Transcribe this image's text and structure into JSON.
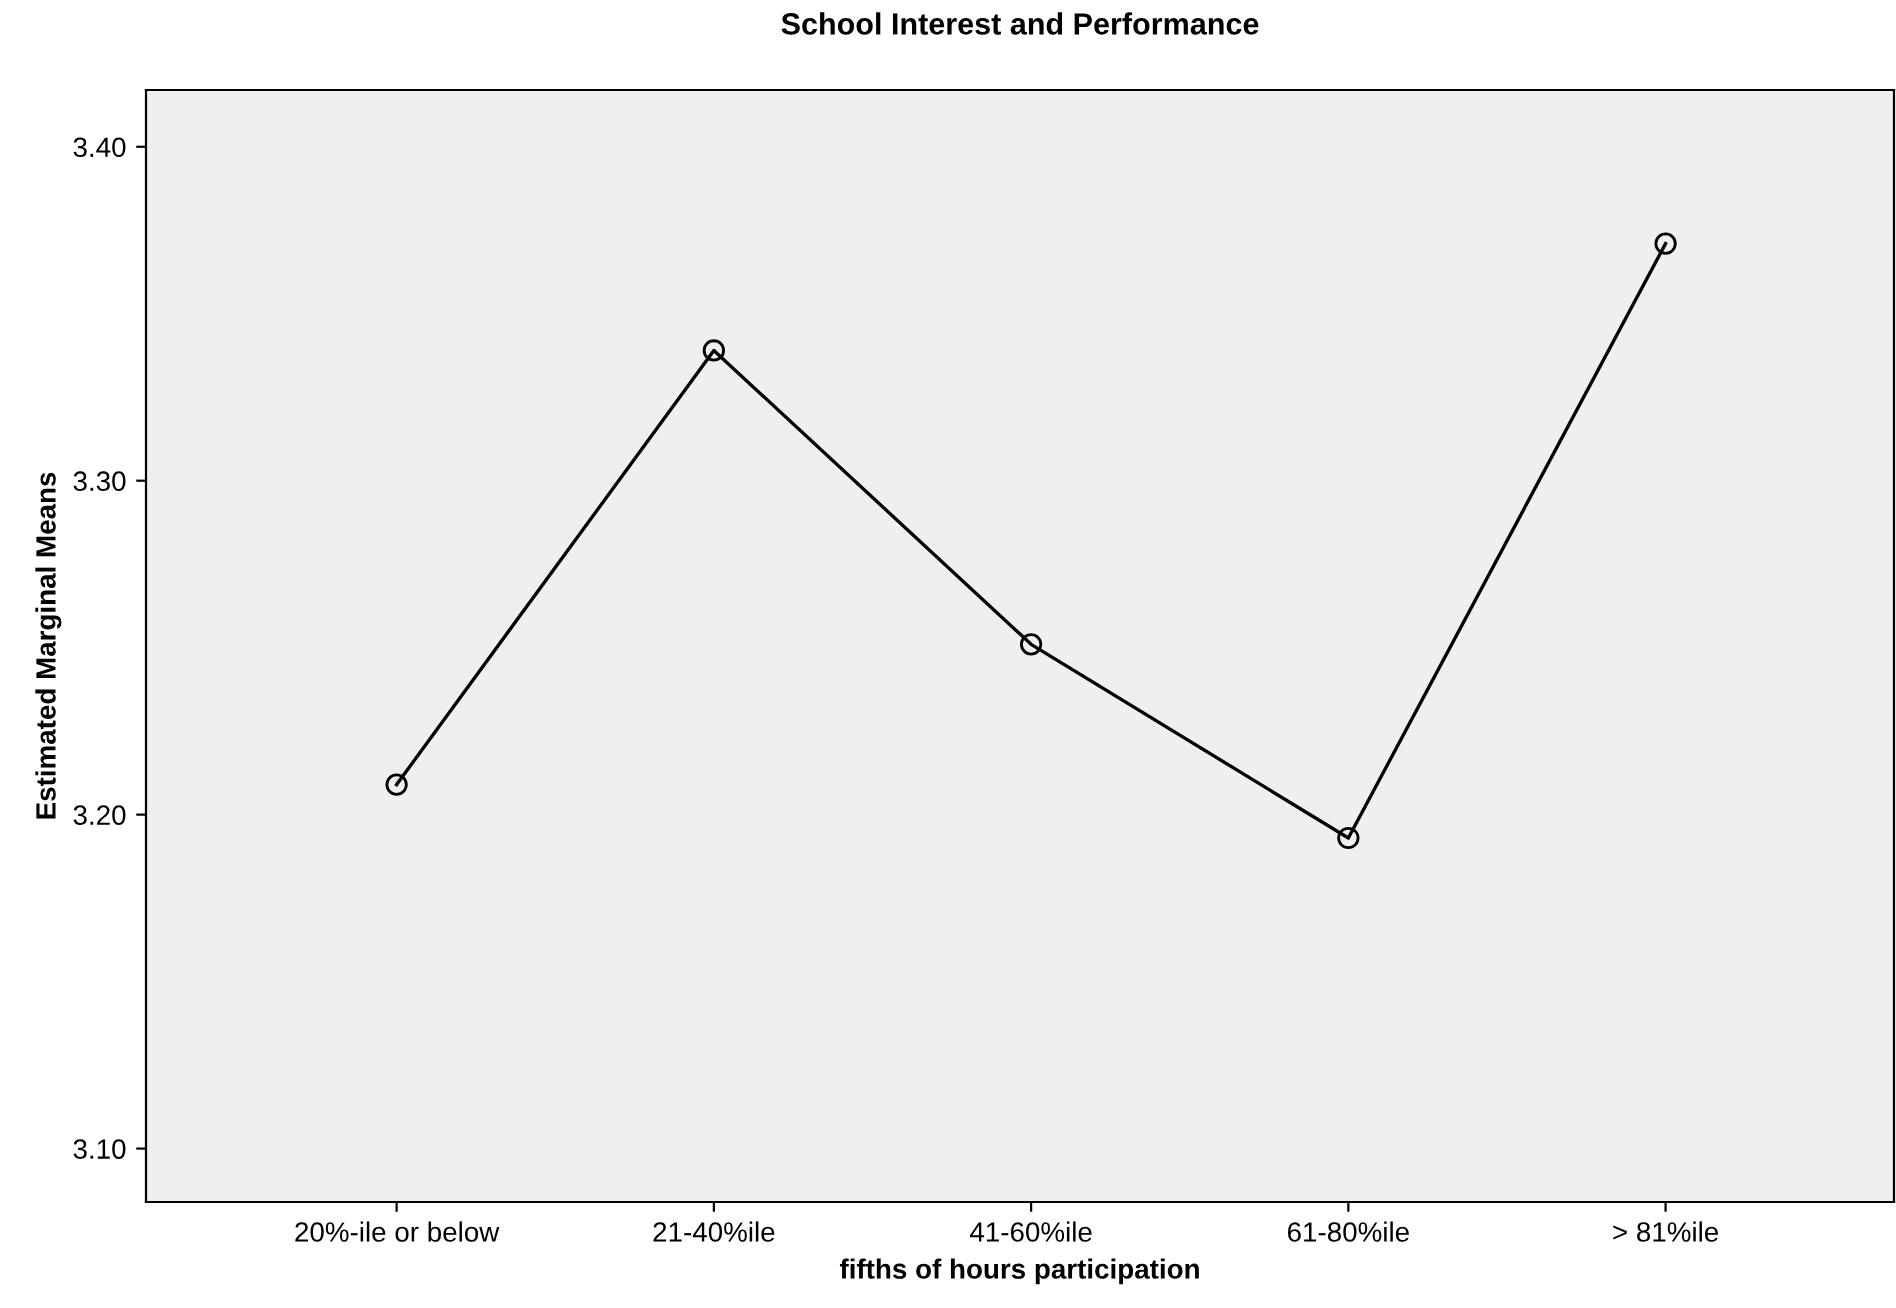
{
  "chart_data": {
    "type": "line",
    "title": "School Interest and Performance",
    "xlabel": "fifths of hours participation",
    "ylabel": "Estimated Marginal Means",
    "categories": [
      "20%-ile or below",
      "21-40%ile",
      "41-60%ile",
      "61-80%ile",
      "> 81%ile"
    ],
    "series": [
      {
        "color": "#000000",
        "values": [
          3.209,
          3.339,
          3.251,
          3.193,
          3.371
        ]
      }
    ],
    "ylim": [
      3.084,
      3.417
    ],
    "yticks": [
      {
        "value": 3.1,
        "label": "3.10"
      },
      {
        "value": 3.2,
        "label": "3.20"
      },
      {
        "value": 3.3,
        "label": "3.30"
      },
      {
        "value": 3.4,
        "label": "3.40"
      }
    ],
    "marker": "circle",
    "line_style": "solid",
    "grid": false,
    "legend": false
  }
}
